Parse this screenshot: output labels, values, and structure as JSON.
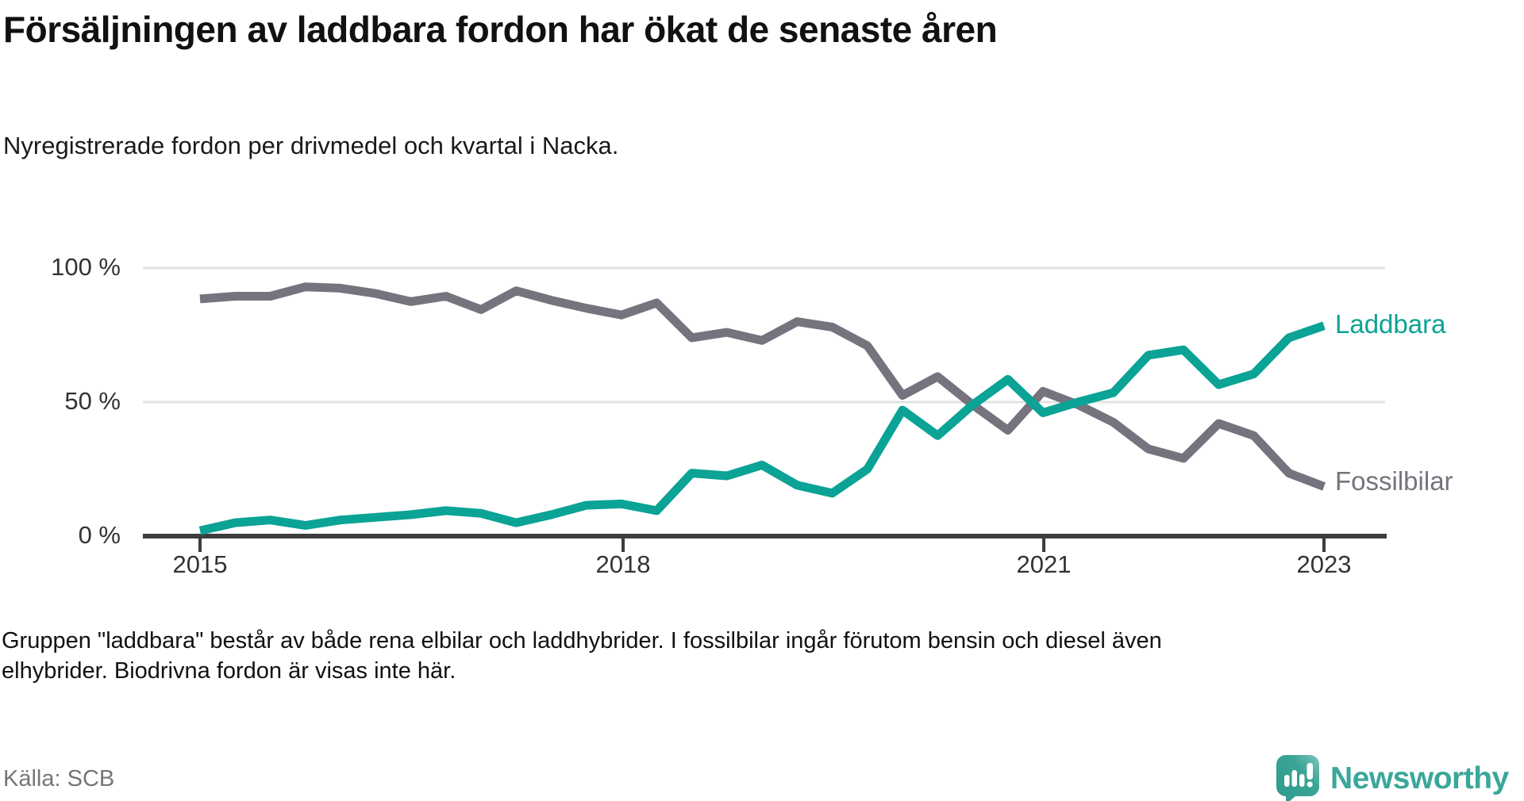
{
  "header": {
    "title": "Försäljningen av laddbara fordon har ökat de senaste åren",
    "subtitle": "Nyregistrerade fordon per drivmedel och kvartal i Nacka."
  },
  "chart_data": {
    "type": "line",
    "unit": "%",
    "ylim": [
      0,
      100
    ],
    "grid": "horizontal",
    "y_tick_labels": [
      "100 %",
      "50 %",
      "0 %"
    ],
    "x_tick_labels": [
      "2015",
      "2018",
      "2021",
      "2023"
    ],
    "x_quarters": [
      "2015 Q1",
      "2015 Q2",
      "2015 Q3",
      "2015 Q4",
      "2016 Q1",
      "2016 Q2",
      "2016 Q3",
      "2016 Q4",
      "2017 Q1",
      "2017 Q2",
      "2017 Q3",
      "2017 Q4",
      "2018 Q1",
      "2018 Q2",
      "2018 Q3",
      "2018 Q4",
      "2019 Q1",
      "2019 Q2",
      "2019 Q3",
      "2019 Q4",
      "2020 Q1",
      "2020 Q2",
      "2020 Q3",
      "2020 Q4",
      "2021 Q1",
      "2021 Q2",
      "2021 Q3",
      "2021 Q4",
      "2022 Q1",
      "2022 Q2",
      "2022 Q3",
      "2022 Q4",
      "2023 Q1"
    ],
    "series": [
      {
        "name": "Fossilbilar",
        "color": "#76737e",
        "values": [
          88.5,
          89.5,
          89.5,
          93,
          92.5,
          90.5,
          87.5,
          89.5,
          84.5,
          91.5,
          88,
          85,
          82.5,
          87,
          74,
          76,
          73,
          80,
          78,
          71,
          52.5,
          59.5,
          49,
          39.5,
          54,
          49,
          42.5,
          32.5,
          29,
          42,
          37.5,
          23.5,
          18.5
        ]
      },
      {
        "name": "Laddbara",
        "color": "#0aa396",
        "values": [
          2,
          5,
          6,
          4,
          6,
          7,
          8,
          9.5,
          8.5,
          5,
          8,
          11.5,
          12,
          9.5,
          23.5,
          22.5,
          26.5,
          19,
          16,
          25,
          47,
          37.5,
          49,
          58.5,
          46,
          50,
          53.5,
          67.5,
          69.5,
          56.5,
          60.5,
          74,
          78.5
        ]
      }
    ],
    "legend_position": "end-of-line-labels"
  },
  "footnote": "Gruppen \"laddbara\" består av både rena elbilar och laddhybrider. I fossilbilar ingår förutom bensin och diesel även elhybrider. Biodrivna fordon är visas inte här.",
  "source": "Källa: SCB",
  "logo": {
    "text": "Newsworthy"
  }
}
